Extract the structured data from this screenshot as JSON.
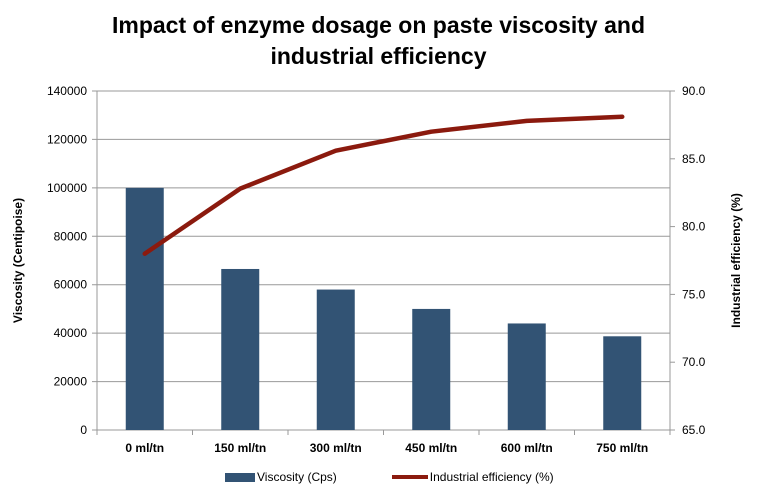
{
  "chart_data": {
    "type": "bar+line",
    "title_line1": "Impact of enzyme dosage on paste viscosity and",
    "title_line2": "industrial efficiency",
    "categories": [
      "0 ml/tn",
      "150 ml/tn",
      "300 ml/tn",
      "450 ml/tn",
      "600 ml/tn",
      "750 ml/tn"
    ],
    "series": [
      {
        "name": "Viscosity (Cps)",
        "type": "bar",
        "axis": "left",
        "color": "#325374",
        "values": [
          100000,
          66500,
          58000,
          50000,
          44000,
          38700
        ]
      },
      {
        "name": "Industrial efficiency (%)",
        "type": "line",
        "axis": "right",
        "color": "#8b1a0e",
        "values": [
          78.0,
          82.8,
          85.6,
          87.0,
          87.8,
          88.1
        ]
      }
    ],
    "ylabel": "Viscosity (Centipoise)",
    "y2label": "Industrial efficiency (%)",
    "ylim": [
      0,
      140000
    ],
    "y2lim": [
      65,
      90
    ],
    "yticks": [
      "0",
      "20000",
      "40000",
      "60000",
      "80000",
      "100000",
      "120000",
      "140000"
    ],
    "y2ticks": [
      "65.0",
      "70.0",
      "75.0",
      "80.0",
      "85.0",
      "90.0"
    ],
    "grid": true,
    "legend_position": "bottom"
  }
}
